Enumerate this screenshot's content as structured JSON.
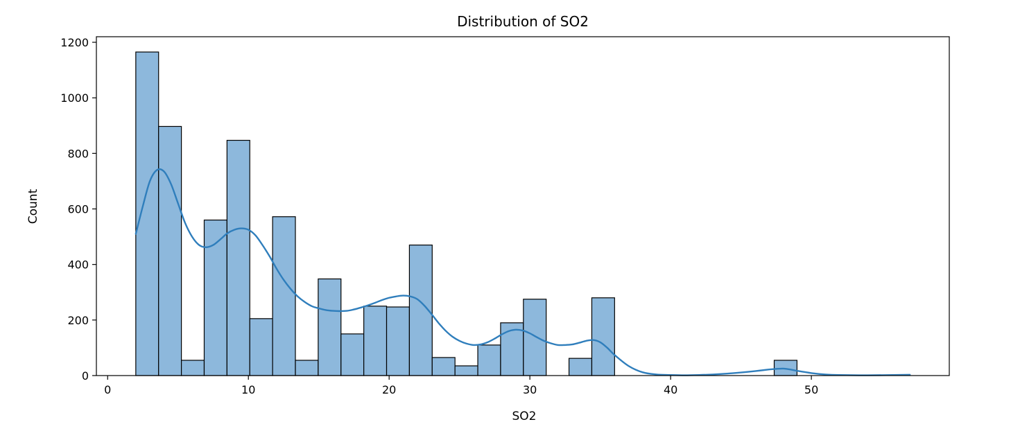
{
  "chart_data": {
    "type": "bar",
    "subtype": "histogram_with_kde",
    "title": "Distribution of SO2",
    "xlabel": "SO2",
    "ylabel": "Count",
    "xlim": [
      -0.8,
      59.8
    ],
    "ylim": [
      0,
      1220
    ],
    "xticks": [
      0,
      10,
      20,
      30,
      40,
      50
    ],
    "yticks": [
      0,
      200,
      400,
      600,
      800,
      1000,
      1200
    ],
    "bins": [
      {
        "x0": 2.0,
        "x1": 3.62,
        "count": 1165
      },
      {
        "x0": 3.62,
        "x1": 5.24,
        "count": 897
      },
      {
        "x0": 5.24,
        "x1": 6.86,
        "count": 55
      },
      {
        "x0": 6.86,
        "x1": 8.48,
        "count": 560
      },
      {
        "x0": 8.48,
        "x1": 10.1,
        "count": 847
      },
      {
        "x0": 10.1,
        "x1": 11.72,
        "count": 205
      },
      {
        "x0": 11.72,
        "x1": 13.34,
        "count": 572
      },
      {
        "x0": 13.34,
        "x1": 14.96,
        "count": 55
      },
      {
        "x0": 14.96,
        "x1": 16.58,
        "count": 348
      },
      {
        "x0": 16.58,
        "x1": 18.2,
        "count": 150
      },
      {
        "x0": 18.2,
        "x1": 19.82,
        "count": 250
      },
      {
        "x0": 19.82,
        "x1": 21.44,
        "count": 247
      },
      {
        "x0": 21.44,
        "x1": 23.06,
        "count": 470
      },
      {
        "x0": 23.06,
        "x1": 24.68,
        "count": 65
      },
      {
        "x0": 24.68,
        "x1": 26.3,
        "count": 35
      },
      {
        "x0": 26.3,
        "x1": 27.92,
        "count": 110
      },
      {
        "x0": 27.92,
        "x1": 29.54,
        "count": 190
      },
      {
        "x0": 29.54,
        "x1": 31.16,
        "count": 275
      },
      {
        "x0": 32.78,
        "x1": 34.4,
        "count": 62
      },
      {
        "x0": 34.4,
        "x1": 36.02,
        "count": 280
      },
      {
        "x0": 47.36,
        "x1": 48.98,
        "count": 55
      }
    ],
    "kde": {
      "x": [
        2.0,
        2.5,
        3.0,
        3.5,
        4.0,
        4.5,
        5.0,
        5.5,
        6.0,
        6.5,
        7.0,
        7.5,
        8.0,
        8.5,
        9.0,
        9.5,
        10.0,
        10.5,
        11.0,
        11.5,
        12.0,
        12.5,
        13.0,
        13.5,
        14.0,
        14.5,
        15.0,
        15.5,
        16.0,
        16.5,
        17.0,
        17.5,
        18.0,
        18.5,
        19.0,
        19.5,
        20.0,
        20.5,
        21.0,
        21.5,
        22.0,
        22.5,
        23.0,
        23.5,
        24.0,
        24.5,
        25.0,
        25.5,
        26.0,
        26.5,
        27.0,
        27.5,
        28.0,
        28.5,
        29.0,
        29.5,
        30.0,
        30.5,
        31.0,
        31.5,
        32.0,
        32.5,
        33.0,
        33.5,
        34.0,
        34.5,
        35.0,
        35.5,
        36.0,
        37.0,
        38.0,
        39.0,
        40.0,
        41.0,
        42.0,
        43.0,
        44.0,
        45.0,
        46.0,
        47.0,
        47.5,
        48.0,
        48.5,
        49.0,
        50.0,
        51.0,
        52.0,
        54.0,
        57.0
      ],
      "y": [
        510,
        610,
        700,
        740,
        735,
        690,
        620,
        550,
        500,
        470,
        462,
        470,
        490,
        512,
        525,
        530,
        525,
        505,
        470,
        430,
        385,
        345,
        312,
        285,
        265,
        250,
        242,
        236,
        233,
        232,
        233,
        238,
        245,
        253,
        262,
        272,
        280,
        285,
        288,
        285,
        275,
        252,
        222,
        190,
        162,
        140,
        125,
        115,
        110,
        112,
        120,
        133,
        148,
        160,
        165,
        162,
        152,
        138,
        125,
        116,
        110,
        110,
        112,
        118,
        125,
        128,
        120,
        100,
        75,
        35,
        12,
        4,
        2,
        1,
        2,
        4,
        7,
        11,
        16,
        22,
        24,
        25,
        22,
        17,
        9,
        4,
        2,
        1,
        3
      ]
    },
    "colors": {
      "bar_fill": "#8db8dc",
      "bar_edge": "#000000",
      "kde_line": "#2f7ebc"
    }
  }
}
